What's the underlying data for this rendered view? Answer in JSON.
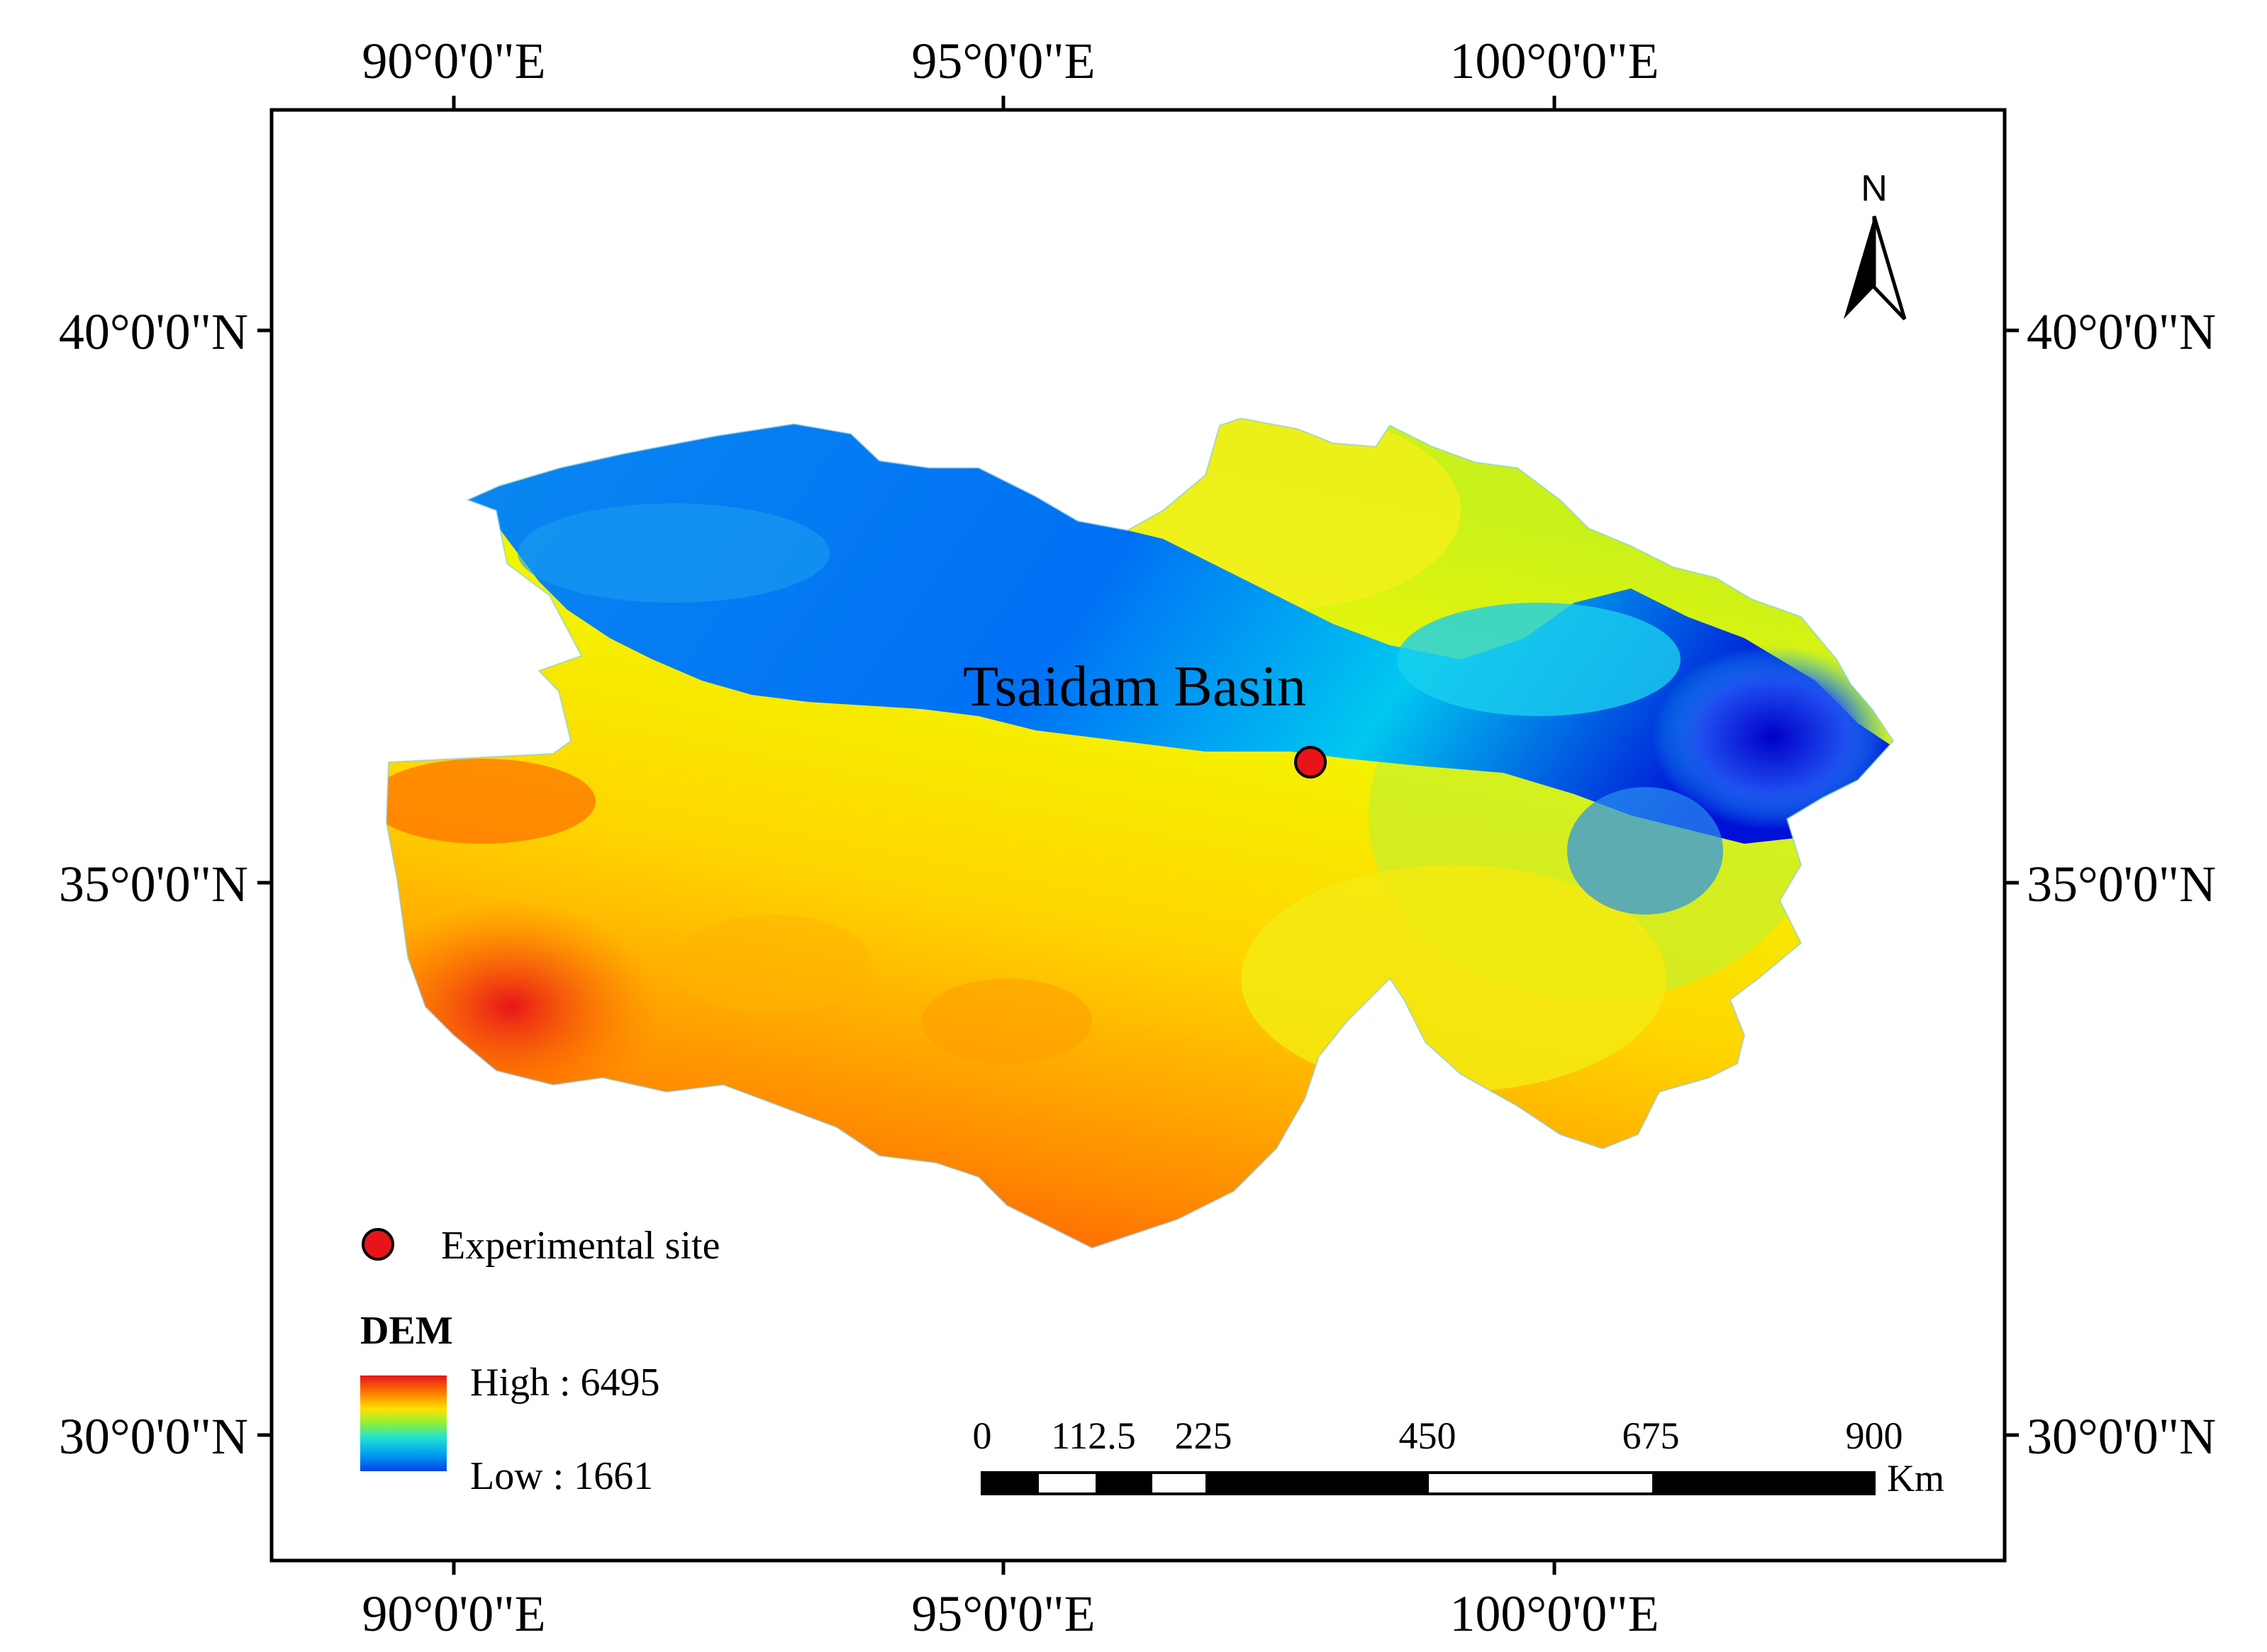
{
  "map": {
    "top_longitudes": [
      "90°0'0\"E",
      "95°0'0\"E",
      "100°0'0\"E"
    ],
    "bottom_longitudes": [
      "90°0'0\"E",
      "95°0'0\"E",
      "100°0'0\"E"
    ],
    "left_latitudes": [
      "40°0'0\"N",
      "35°0'0\"N",
      "30°0'0\"N"
    ],
    "right_latitudes": [
      "40°0'0\"N",
      "35°0'0\"N",
      "30°0'0\"N"
    ],
    "region_label": "Tsaidam Basin",
    "north_arrow_label": "N",
    "site": {
      "label": "Experimental site",
      "color": "#e8141a"
    },
    "dem_legend": {
      "title": "DEM",
      "high_label": "High : 6495",
      "low_label": "Low : 1661",
      "colors": [
        "#e8141a",
        "#ff7a00",
        "#ffd200",
        "#f4f60a",
        "#7df04a",
        "#1fe3d2",
        "#00a6f0",
        "#0062f5",
        "#0000d6"
      ]
    },
    "scale_bar": {
      "ticks": [
        "0",
        "112.5",
        "225",
        "450",
        "675",
        "900"
      ],
      "unit": "Km"
    }
  }
}
